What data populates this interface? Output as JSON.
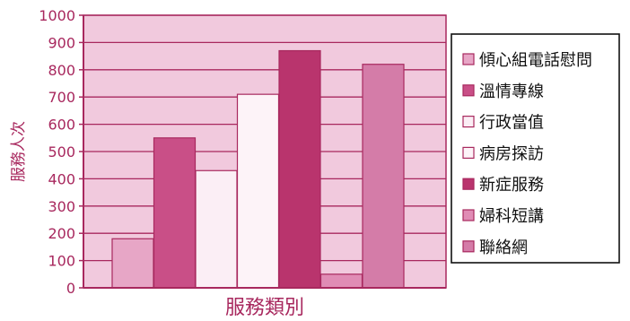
{
  "chart_data": {
    "type": "bar",
    "title": "",
    "xlabel": "服務類別",
    "ylabel": "服務人次",
    "ylim": [
      0,
      1000
    ],
    "yticks": [
      0,
      100,
      200,
      300,
      400,
      500,
      600,
      700,
      800,
      900,
      1000
    ],
    "grid": true,
    "legend_position": "right",
    "series": [
      {
        "name": "傾心組電話慰問",
        "value": 180,
        "color": "#e7a6c6"
      },
      {
        "name": "溫情專線",
        "value": 550,
        "color": "#c94f87"
      },
      {
        "name": "行政當值",
        "value": 430,
        "color": "#fbeef5"
      },
      {
        "name": "病房探訪",
        "value": 710,
        "color": "#fdf3f8"
      },
      {
        "name": "新症服務",
        "value": 870,
        "color": "#b9346d"
      },
      {
        "name": "婦科短講",
        "value": 50,
        "color": "#e08cb5"
      },
      {
        "name": "聯絡網",
        "value": 820,
        "color": "#d47ca8"
      }
    ],
    "plot_background": "#f1c9dd",
    "gridline_color": "#a8285e"
  }
}
